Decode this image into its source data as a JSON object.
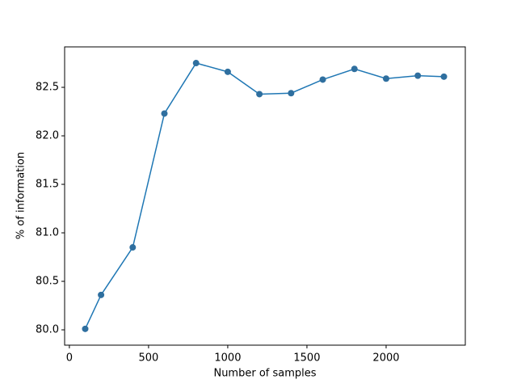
{
  "chart_data": {
    "type": "line",
    "xlabel": "Number of samples",
    "ylabel": "% of information",
    "x": [
      100,
      200,
      400,
      600,
      800,
      1000,
      1200,
      1400,
      1600,
      1800,
      2000,
      2200,
      2365
    ],
    "series": [
      {
        "name": "information",
        "color": "#1f77b4",
        "marker_color": "#2f6f9f",
        "values": [
          80.01,
          80.36,
          80.85,
          82.23,
          82.75,
          82.66,
          82.43,
          82.44,
          82.58,
          82.69,
          82.59,
          82.62,
          82.61
        ]
      }
    ],
    "xlim": [
      -30,
      2500
    ],
    "ylim": [
      79.842,
      82.917
    ],
    "xticks": [
      0,
      500,
      1000,
      1500,
      2000
    ],
    "yticks": [
      {
        "value": 80.0,
        "label": "80.0"
      },
      {
        "value": 80.5,
        "label": "80.5"
      },
      {
        "value": 81.0,
        "label": "81.0"
      },
      {
        "value": 81.5,
        "label": "81.5"
      },
      {
        "value": 82.0,
        "label": "82.0"
      },
      {
        "value": 82.5,
        "label": "82.5"
      }
    ]
  }
}
